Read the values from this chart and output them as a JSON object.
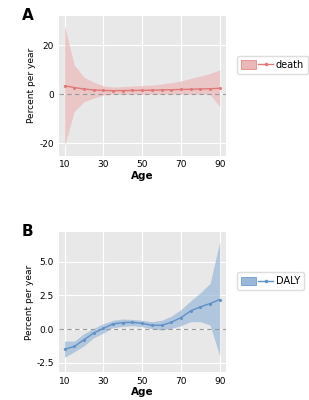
{
  "ages": [
    10,
    15,
    20,
    25,
    30,
    35,
    40,
    45,
    50,
    55,
    60,
    65,
    70,
    75,
    80,
    85,
    90
  ],
  "death_mean": [
    3.5,
    2.8,
    2.2,
    1.8,
    1.6,
    1.5,
    1.55,
    1.6,
    1.65,
    1.7,
    1.8,
    1.9,
    2.0,
    2.1,
    2.2,
    2.3,
    2.5
  ],
  "death_upper": [
    28,
    12,
    7,
    5,
    3.5,
    3.0,
    3.2,
    3.4,
    3.6,
    3.8,
    4.2,
    4.8,
    5.5,
    6.5,
    7.5,
    8.5,
    10.0
  ],
  "death_lower": [
    -21,
    -7,
    -3.0,
    -1.5,
    -0.3,
    0.0,
    0.0,
    0.0,
    0.0,
    0.0,
    0.0,
    0.0,
    0.0,
    0.0,
    0.0,
    0.0,
    -5.0
  ],
  "daly_mean": [
    -1.5,
    -1.3,
    -0.8,
    -0.3,
    0.05,
    0.38,
    0.48,
    0.5,
    0.42,
    0.28,
    0.28,
    0.5,
    0.85,
    1.35,
    1.65,
    1.9,
    2.2
  ],
  "daly_upper": [
    -0.9,
    -0.9,
    -0.35,
    0.05,
    0.4,
    0.65,
    0.75,
    0.72,
    0.65,
    0.55,
    0.65,
    0.95,
    1.45,
    2.1,
    2.7,
    3.4,
    6.5
  ],
  "daly_lower": [
    -2.1,
    -1.7,
    -1.25,
    -0.65,
    -0.3,
    0.1,
    0.2,
    0.25,
    0.18,
    0.02,
    -0.08,
    0.05,
    0.25,
    0.55,
    0.55,
    0.3,
    -2.0
  ],
  "death_color": "#e07878",
  "death_fill": "#ebb8b8",
  "daly_color": "#6090c8",
  "daly_fill": "#98b8d8",
  "bg_color": "#e8e8e8",
  "grid_color": "#ffffff",
  "panel_label_A": "A",
  "panel_label_B": "B",
  "ylabel": "Percent per year",
  "xlabel": "Age",
  "death_ylim": [
    -25,
    32
  ],
  "death_yticks": [
    -20,
    0,
    20
  ],
  "daly_ylim": [
    -3.2,
    7.2
  ],
  "daly_yticks": [
    -2.5,
    0.0,
    2.5,
    5.0
  ],
  "xticks": [
    10,
    30,
    50,
    70,
    90
  ],
  "legend_death": "death",
  "legend_daly": "DALY"
}
